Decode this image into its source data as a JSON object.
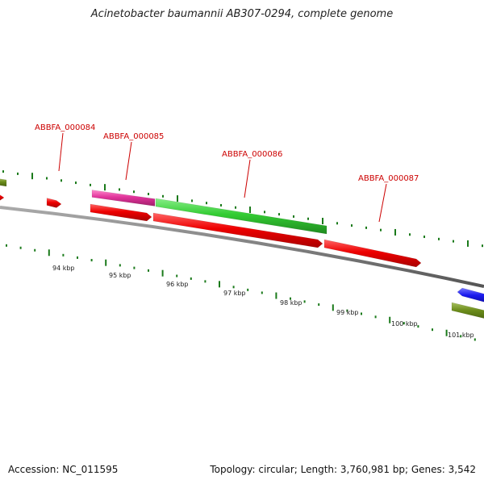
{
  "title": "Acinetobacter baumannii AB307-0294, complete genome",
  "footer": {
    "accession": "Accession: NC_011595",
    "summary": "Topology: circular; Length: 3,760,981 bp; Genes: 3,542"
  },
  "gene_labels": [
    "ABBFA_000084",
    "ABBFA_000085",
    "ABBFA_000086",
    "ABBFA_000087"
  ],
  "scale_labels": [
    "94 kbp",
    "95 kbp",
    "96 kbp",
    "97 kbp",
    "98 kbp",
    "99 kbp",
    "100 kbp",
    "101 kbp"
  ],
  "colors": {
    "red": "#e60000",
    "pink": "#e0339a",
    "green": "#33cc33",
    "olive": "#6b8c1a",
    "blue": "#1a1aee",
    "backbone": "#808080",
    "tick": "#1a7a1a",
    "label": "#cc0000"
  }
}
